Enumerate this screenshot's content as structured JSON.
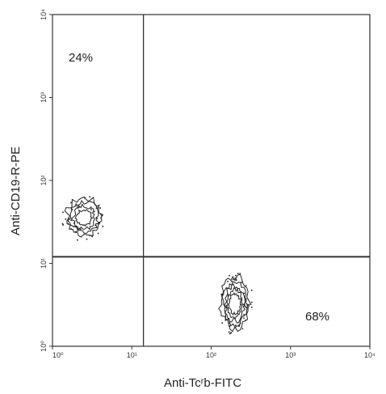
{
  "chart_data": {
    "type": "scatter",
    "subtype": "flow-cytometry-contour",
    "xlabel": "Anti-Tcʳb-FITC",
    "ylabel": "Anti-CD19-R-PE",
    "x_scale": "log",
    "y_scale": "log",
    "xlim": [
      1,
      10000
    ],
    "ylim": [
      1,
      10000
    ],
    "x_ticks": [
      {
        "value": 1,
        "label": "10⁰"
      },
      {
        "value": 10,
        "label": "10¹"
      },
      {
        "value": 100,
        "label": "10²"
      },
      {
        "value": 1000,
        "label": "10³"
      },
      {
        "value": 10000,
        "label": "10⁴"
      }
    ],
    "y_ticks": [
      {
        "value": 1,
        "label": "10⁰"
      },
      {
        "value": 10,
        "label": "10¹"
      },
      {
        "value": 100,
        "label": "10²"
      },
      {
        "value": 1000,
        "label": "10³"
      },
      {
        "value": 10000,
        "label": "10⁴"
      }
    ],
    "gates": {
      "x": 14,
      "y": 12
    },
    "quadrant_labels": [
      {
        "text": "24%",
        "quadrant": "upper-left"
      },
      {
        "text": "68%",
        "quadrant": "lower-right"
      }
    ],
    "populations": [
      {
        "name": "upper-left",
        "center": [
          2.5,
          35
        ],
        "spread_log": [
          0.22,
          0.22
        ],
        "levels": 4
      },
      {
        "name": "lower-right",
        "center": [
          200,
          3.2
        ],
        "spread_log": [
          0.18,
          0.3
        ],
        "levels": 5
      }
    ],
    "grid": false,
    "colors": {
      "line": "#333333",
      "contour": "#222222"
    }
  }
}
